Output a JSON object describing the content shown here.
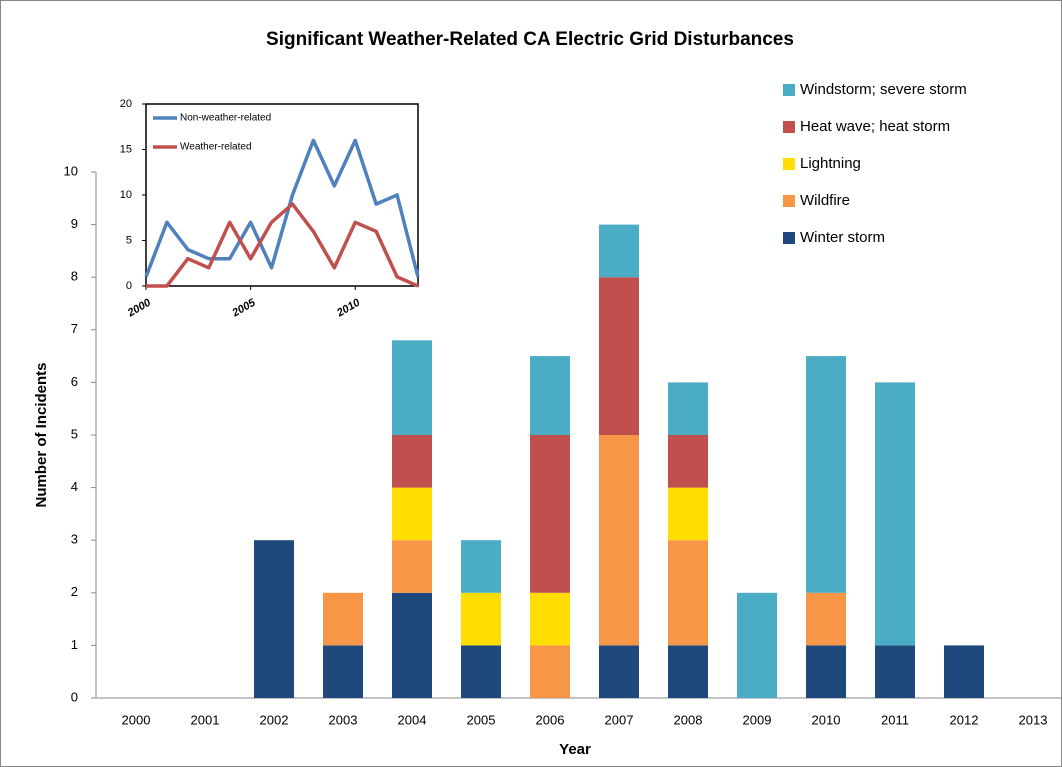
{
  "chart_data": [
    {
      "type": "bar",
      "stacked": true,
      "title": "Significant Weather-Related CA Electric Grid Disturbances",
      "x_label": "Year",
      "y_label": "Number of Incidents",
      "categories": [
        "2000",
        "2001",
        "2002",
        "2003",
        "2004",
        "2005",
        "2006",
        "2007",
        "2008",
        "2009",
        "2010",
        "2011",
        "2012",
        "2013"
      ],
      "series": [
        {
          "name": "Windstorm; severe storm",
          "color": "#4bacc6",
          "values": [
            0,
            0,
            0,
            0,
            1.8,
            1,
            1.5,
            1,
            1,
            2,
            4.5,
            5,
            0,
            0
          ]
        },
        {
          "name": "Heat wave; heat storm",
          "color": "#c0504d",
          "values": [
            0,
            0,
            0,
            0,
            1,
            0,
            3,
            3,
            1,
            0,
            0,
            0,
            0,
            0
          ]
        },
        {
          "name": "Lightning",
          "color": "#ffdd00",
          "values": [
            0,
            0,
            0,
            0,
            1,
            1,
            1,
            0,
            1,
            0,
            0,
            0,
            0,
            0
          ]
        },
        {
          "name": "Wildfire",
          "color": "#f79646",
          "values": [
            0,
            0,
            0,
            1,
            1,
            0,
            1,
            4,
            2,
            0,
            1,
            0,
            0,
            0
          ]
        },
        {
          "name": "Winter storm",
          "color": "#1f497d",
          "values": [
            0,
            0,
            3,
            1,
            2,
            1,
            0,
            1,
            1,
            0,
            1,
            1,
            1,
            0
          ]
        }
      ],
      "ylim": [
        0,
        10
      ],
      "yticks": [
        0,
        1,
        2,
        3,
        4,
        5,
        6,
        7,
        8,
        9,
        10
      ],
      "legend": "top-right"
    },
    {
      "type": "line",
      "x": [
        2000,
        2001,
        2002,
        2003,
        2004,
        2005,
        2006,
        2007,
        2008,
        2009,
        2010,
        2011,
        2012,
        2013
      ],
      "series": [
        {
          "name": "Non-weather-related",
          "color": "#4f81bd",
          "values": [
            1,
            7,
            4,
            3,
            3,
            7,
            2,
            10,
            16,
            11,
            16,
            9,
            10,
            1
          ]
        },
        {
          "name": "Weather-related",
          "color": "#c0504d",
          "values": [
            0,
            0,
            3,
            2,
            7,
            3,
            7,
            9,
            6,
            2,
            7,
            6,
            1,
            0
          ]
        }
      ],
      "xlim": [
        2000,
        2013
      ],
      "xticks": [
        2000,
        2005,
        2010
      ],
      "ylim": [
        0,
        20
      ],
      "yticks": [
        0,
        5,
        10,
        15,
        20
      ],
      "legend": "top-left"
    }
  ]
}
